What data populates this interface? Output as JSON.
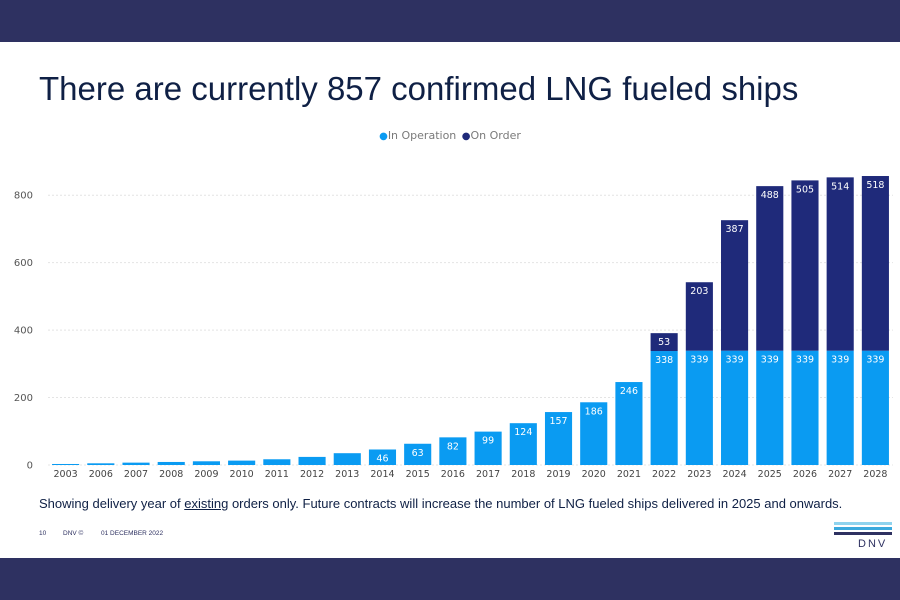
{
  "title": "There are currently 857 confirmed LNG fueled ships",
  "colors": {
    "band": "#2e3161",
    "in_operation": "#0a9bf2",
    "on_order": "#1f2a7a",
    "title": "#0f2045"
  },
  "chart_data": {
    "type": "bar",
    "stacked": true,
    "categories": [
      "2003",
      "2006",
      "2007",
      "2008",
      "2009",
      "2010",
      "2011",
      "2012",
      "2013",
      "2014",
      "2015",
      "2016",
      "2017",
      "2018",
      "2019",
      "2020",
      "2021",
      "2022",
      "2023",
      "2024",
      "2025",
      "2026",
      "2027",
      "2028"
    ],
    "series": [
      {
        "name": "In Operation",
        "values": [
          3,
          5,
          7,
          9,
          11,
          13,
          17,
          24,
          35,
          46,
          63,
          82,
          99,
          124,
          157,
          186,
          246,
          338,
          339,
          339,
          339,
          339,
          339,
          339
        ],
        "labels": [
          "",
          "",
          "",
          "",
          "",
          "",
          "",
          "",
          "",
          "46",
          "63",
          "82",
          "99",
          "124",
          "157",
          "186",
          "246",
          "338",
          "339",
          "339",
          "339",
          "339",
          "339",
          "339"
        ]
      },
      {
        "name": "On Order",
        "values": [
          0,
          0,
          0,
          0,
          0,
          0,
          0,
          0,
          0,
          0,
          0,
          0,
          0,
          0,
          0,
          0,
          0,
          53,
          203,
          387,
          488,
          505,
          514,
          518
        ],
        "labels": [
          "",
          "",
          "",
          "",
          "",
          "",
          "",
          "",
          "",
          "",
          "",
          "",
          "",
          "",
          "",
          "",
          "",
          "53",
          "203",
          "387",
          "488",
          "505",
          "514",
          "518"
        ]
      }
    ],
    "ylim": [
      0,
      860
    ],
    "yticks": [
      "0",
      "200",
      "400",
      "600",
      "800"
    ],
    "grid": true,
    "legend_position": "top-center"
  },
  "legend": {
    "in_operation": "In Operation",
    "on_order": "On Order"
  },
  "footnote": {
    "before": "Showing delivery year of ",
    "underlined": "existing",
    "after": " orders only. Future contracts will increase the number of LNG fueled ships delivered in 2025 and onwards."
  },
  "footer": {
    "page_number": "10",
    "copyright": "DNV ©",
    "date": "01 DECEMBER 2022"
  },
  "logo": {
    "text": "DNV"
  }
}
